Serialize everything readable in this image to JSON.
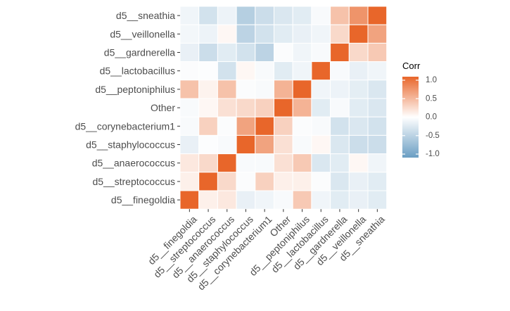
{
  "chart_data": {
    "type": "heatmap",
    "title": "",
    "xlabel": "",
    "ylabel": "",
    "legend": {
      "title": "Corr",
      "position": "right",
      "range": [
        -1.0,
        1.0
      ],
      "ticks": [
        1.0,
        0.5,
        0.0,
        -0.5,
        -1.0
      ],
      "tick_labels": [
        "1.0",
        "0.5",
        "0.0",
        "-0.5",
        "-1.0"
      ],
      "colors": {
        "low": "#6a9ec3",
        "mid": "#ffffff",
        "high": "#e8662a"
      }
    },
    "x_categories": [
      "d5__finegoldia",
      "d5__streptococcus",
      "d5__anaerococcus",
      "d5__staphylococcus",
      "d5__corynebacterium1",
      "Other",
      "d5__peptoniphilus",
      "d5__lactobacillus",
      "d5__gardnerella",
      "d5__veillonella",
      "d5__sneathia"
    ],
    "y_categories_top_to_bottom": [
      "d5__sneathia",
      "d5__veillonella",
      "d5__gardnerella",
      "d5__lactobacillus",
      "d5__peptoniphilus",
      "Other",
      "d5__corynebacterium1",
      "d5__staphylococcus",
      "d5__anaerococcus",
      "d5__streptococcus",
      "d5__finegoldia"
    ],
    "values": [
      [
        -0.1,
        -0.3,
        -0.12,
        -0.5,
        -0.35,
        -0.25,
        -0.2,
        -0.05,
        0.4,
        0.7,
        1.0
      ],
      [
        -0.08,
        -0.12,
        0.05,
        -0.45,
        -0.3,
        -0.2,
        -0.15,
        -0.1,
        0.25,
        1.0,
        0.6
      ],
      [
        -0.15,
        -0.35,
        -0.2,
        -0.3,
        -0.45,
        -0.03,
        -0.1,
        -0.05,
        1.0,
        0.25,
        0.35
      ],
      [
        -0.03,
        -0.02,
        -0.3,
        0.05,
        -0.05,
        -0.2,
        -0.1,
        1.0,
        -0.05,
        -0.15,
        -0.1
      ],
      [
        0.4,
        0.08,
        0.4,
        -0.03,
        -0.05,
        0.5,
        1.0,
        -0.1,
        -0.12,
        -0.18,
        -0.25
      ],
      [
        -0.05,
        0.05,
        0.2,
        0.25,
        0.3,
        1.0,
        0.5,
        -0.2,
        -0.05,
        -0.2,
        -0.25
      ],
      [
        -0.05,
        0.3,
        -0.03,
        0.6,
        1.0,
        0.3,
        -0.03,
        -0.05,
        -0.3,
        -0.25,
        -0.3
      ],
      [
        -0.15,
        -0.02,
        -0.05,
        1.0,
        0.6,
        0.2,
        -0.05,
        0.05,
        -0.25,
        -0.35,
        -0.35
      ],
      [
        0.15,
        0.25,
        1.0,
        -0.05,
        -0.05,
        0.2,
        0.35,
        -0.25,
        -0.2,
        0.05,
        -0.1
      ],
      [
        0.1,
        1.0,
        0.25,
        -0.03,
        0.3,
        0.1,
        0.1,
        -0.03,
        -0.25,
        -0.15,
        -0.2
      ],
      [
        1.0,
        0.1,
        0.15,
        -0.15,
        -0.1,
        -0.05,
        0.35,
        -0.1,
        -0.2,
        -0.15,
        -0.2
      ]
    ]
  }
}
